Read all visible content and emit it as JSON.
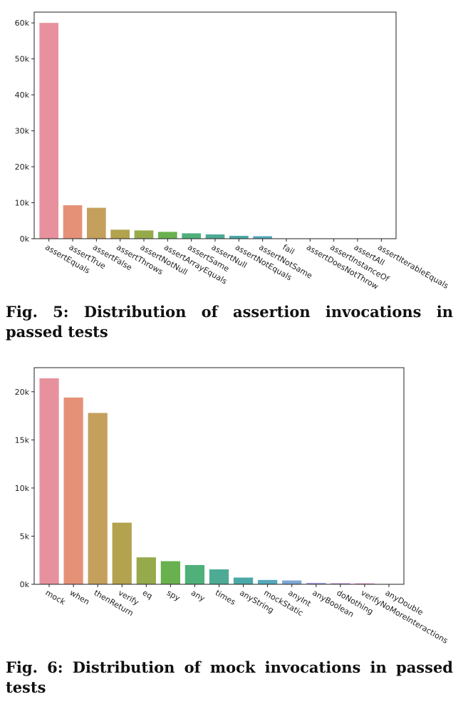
{
  "chart_data": [
    {
      "type": "bar",
      "caption": "Fig. 5: Distribution of assertion invocations in passed tests",
      "categories": [
        "assertEquals",
        "assertTrue",
        "assertFalse",
        "assertThrows",
        "assertNotNull",
        "assertArrayEquals",
        "assertSame",
        "assertNull",
        "assertNotEquals",
        "assertNotSame",
        "fail",
        "assertDoesNotThrow",
        "assertInstanceOf",
        "assertAll",
        "assertIterableEquals"
      ],
      "values": [
        60000,
        9300,
        8600,
        2500,
        2300,
        1900,
        1500,
        1200,
        800,
        700,
        100,
        60,
        40,
        30,
        20
      ],
      "ylim": [
        0,
        63000
      ],
      "yticks": [
        0,
        10000,
        20000,
        30000,
        40000,
        50000,
        60000
      ],
      "ytick_labels": [
        "0k",
        "10k",
        "20k",
        "30k",
        "40k",
        "50k",
        "60k"
      ],
      "colors": [
        "#e8919e",
        "#e59178",
        "#c4a05c",
        "#b3a24e",
        "#96aa4c",
        "#68b14e",
        "#4fb07a",
        "#4dab95",
        "#4aa9a6",
        "#55a9bd",
        "#7ea9d6",
        "#a6a1e6",
        "#c799e3",
        "#e590d6",
        "#e895b6"
      ],
      "xlabel": "",
      "ylabel": "",
      "grid": false
    },
    {
      "type": "bar",
      "caption": "Fig. 6: Distribution of mock invocations in passed tests",
      "categories": [
        "mock",
        "when",
        "thenReturn",
        "verify",
        "eq",
        "spy",
        "any",
        "times",
        "anyString",
        "mockStatic",
        "anyInt",
        "anyBoolean",
        "doNothing",
        "verifyNoMoreInteractions",
        "anyDouble"
      ],
      "values": [
        21400,
        19400,
        17800,
        6400,
        2800,
        2400,
        2000,
        1550,
        700,
        450,
        400,
        150,
        120,
        100,
        40
      ],
      "ylim": [
        0,
        22500
      ],
      "yticks": [
        0,
        5000,
        10000,
        15000,
        20000
      ],
      "ytick_labels": [
        "0k",
        "5k",
        "10k",
        "15k",
        "20k"
      ],
      "colors": [
        "#e8919e",
        "#e59178",
        "#c4a05c",
        "#b3a24e",
        "#96aa4c",
        "#68b14e",
        "#4fb07a",
        "#4dab95",
        "#4aa9a6",
        "#55a9bd",
        "#7ea9d6",
        "#a6a1e6",
        "#c799e3",
        "#e590d6",
        "#e895b6"
      ],
      "xlabel": "",
      "ylabel": "",
      "grid": false
    }
  ]
}
